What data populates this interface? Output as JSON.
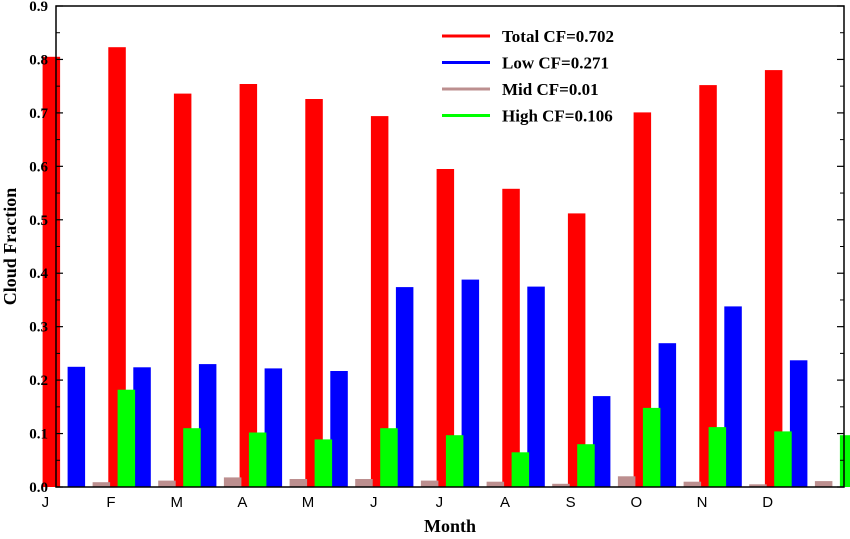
{
  "chart_data": {
    "type": "bar",
    "xlabel": "Month",
    "ylabel": "Cloud Fraction",
    "ylim": [
      0,
      0.9
    ],
    "yticks": [
      "0.0",
      "0.1",
      "0.2",
      "0.3",
      "0.4",
      "0.5",
      "0.6",
      "0.7",
      "0.8",
      "0.9"
    ],
    "categories": [
      "J",
      "F",
      "M",
      "A",
      "M",
      "J",
      "J",
      "A",
      "S",
      "O",
      "N",
      "D"
    ],
    "legend_position": "top-right",
    "grid": false,
    "series": [
      {
        "name": "Total CF=0.702",
        "color": "#ff0000",
        "values": [
          0.805,
          0.823,
          0.736,
          0.754,
          0.726,
          0.694,
          0.595,
          0.558,
          0.512,
          0.701,
          0.752,
          0.78
        ]
      },
      {
        "name": "Low CF=0.271",
        "color": "#0000ff",
        "values": [
          0.225,
          0.224,
          0.23,
          0.222,
          0.217,
          0.374,
          0.388,
          0.375,
          0.17,
          0.269,
          0.338,
          0.237
        ]
      },
      {
        "name": "Mid CF=0.01",
        "color": "#bc8f8f",
        "values": [
          0.009,
          0.012,
          0.018,
          0.015,
          0.015,
          0.012,
          0.01,
          0.006,
          0.02,
          0.01,
          0.005,
          0.011
        ]
      },
      {
        "name": "High CF=0.106",
        "color": "#00ff00",
        "values": [
          0.182,
          0.11,
          0.102,
          0.089,
          0.11,
          0.097,
          0.065,
          0.08,
          0.148,
          0.112,
          0.104,
          0.097
        ]
      }
    ]
  }
}
